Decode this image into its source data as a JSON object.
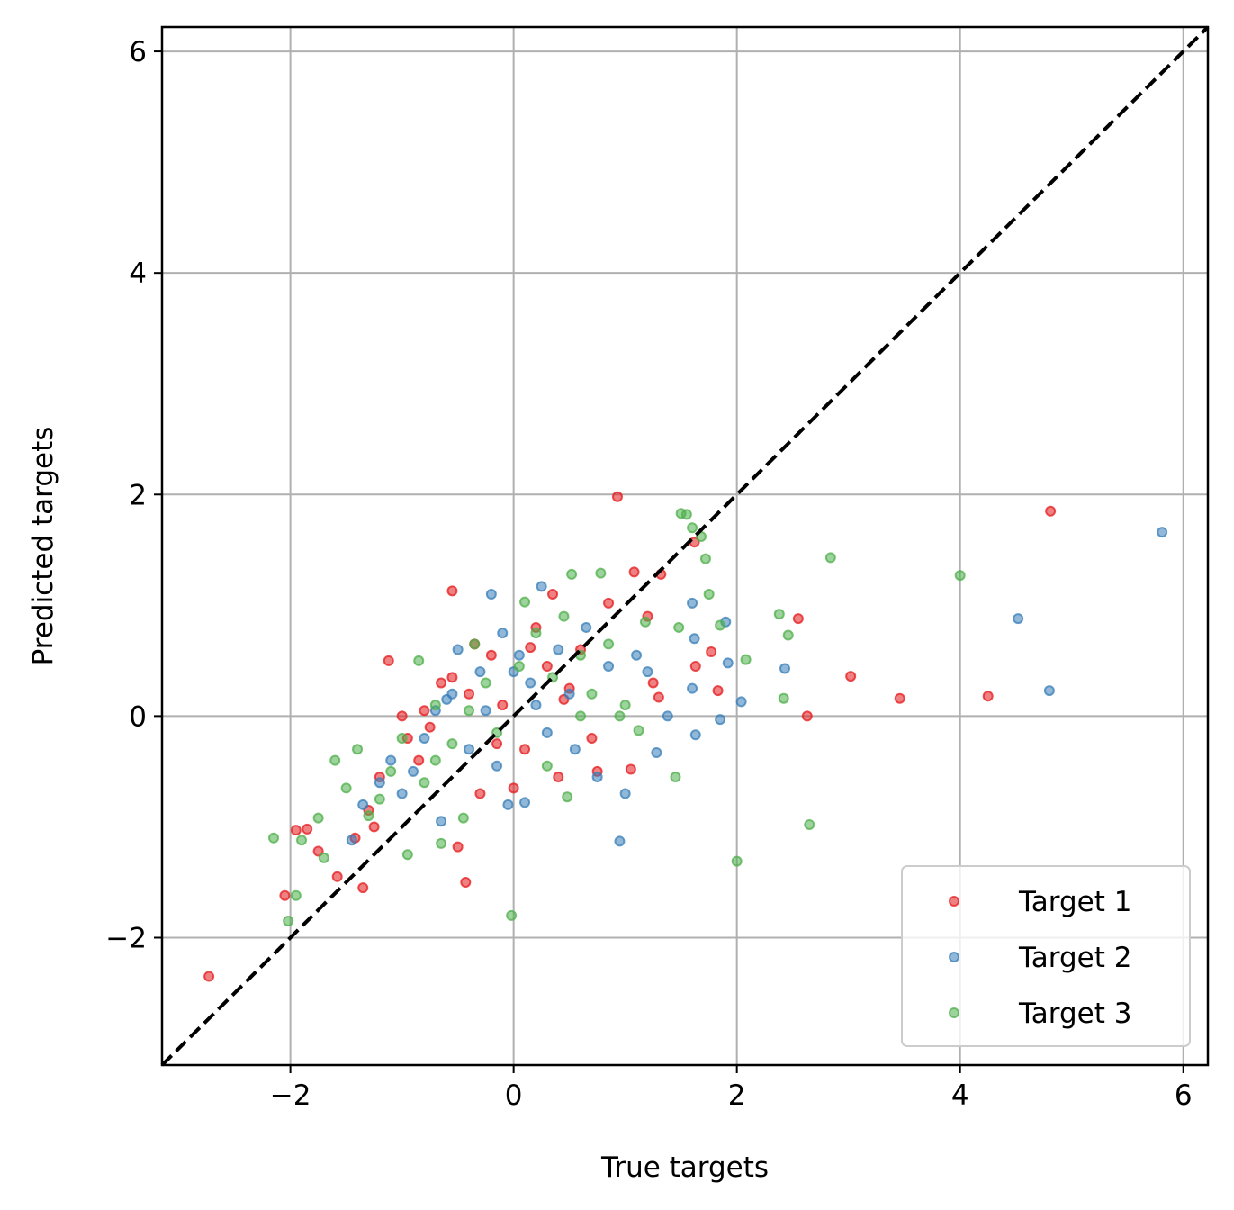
{
  "chart_data": {
    "type": "scatter",
    "title": "",
    "xlabel": "True targets",
    "ylabel": "Predicted targets",
    "xlim": [
      -3.15,
      6.22
    ],
    "ylim": [
      -3.15,
      6.22
    ],
    "xticks": [
      -2,
      0,
      2,
      4,
      6
    ],
    "yticks": [
      -2,
      0,
      2,
      4,
      6
    ],
    "xtick_labels": [
      "−2",
      "0",
      "2",
      "4",
      "6"
    ],
    "ytick_labels": [
      "−2",
      "0",
      "2",
      "4",
      "6"
    ],
    "grid": true,
    "legend_position": "lower-right",
    "reference_line": {
      "style": "dashed",
      "color": "#000000",
      "from": [
        -3.15,
        -3.15
      ],
      "to": [
        6.22,
        6.22
      ]
    },
    "series": [
      {
        "name": "Target 1",
        "color": "#e41a1c",
        "points": [
          [
            -2.73,
            -2.35
          ],
          [
            -2.05,
            -1.62
          ],
          [
            -1.95,
            -1.03
          ],
          [
            -1.85,
            -1.02
          ],
          [
            -1.75,
            -1.22
          ],
          [
            -1.58,
            -1.45
          ],
          [
            -1.35,
            -1.55
          ],
          [
            -1.42,
            -1.1
          ],
          [
            -1.3,
            -0.85
          ],
          [
            -1.25,
            -1.0
          ],
          [
            -1.2,
            -0.55
          ],
          [
            -1.12,
            0.5
          ],
          [
            -1.0,
            0.0
          ],
          [
            -0.95,
            -0.2
          ],
          [
            -0.85,
            -0.4
          ],
          [
            -0.75,
            -0.1
          ],
          [
            -0.65,
            0.3
          ],
          [
            -0.55,
            1.13
          ],
          [
            -0.5,
            -1.18
          ],
          [
            -0.43,
            -1.5
          ],
          [
            -0.4,
            0.2
          ],
          [
            -0.3,
            -0.7
          ],
          [
            -0.2,
            0.55
          ],
          [
            -0.1,
            0.1
          ],
          [
            0.0,
            -0.65
          ],
          [
            0.1,
            -0.3
          ],
          [
            0.2,
            0.8
          ],
          [
            0.3,
            0.45
          ],
          [
            0.35,
            1.1
          ],
          [
            0.4,
            -0.55
          ],
          [
            0.5,
            0.25
          ],
          [
            0.6,
            0.6
          ],
          [
            0.7,
            -0.2
          ],
          [
            0.75,
            -0.5
          ],
          [
            0.85,
            1.02
          ],
          [
            0.93,
            1.98
          ],
          [
            1.05,
            -0.48
          ],
          [
            1.08,
            1.3
          ],
          [
            1.2,
            0.9
          ],
          [
            1.25,
            0.3
          ],
          [
            1.3,
            0.17
          ],
          [
            1.32,
            1.28
          ],
          [
            1.62,
            1.57
          ],
          [
            1.63,
            0.45
          ],
          [
            1.77,
            0.58
          ],
          [
            1.83,
            0.23
          ],
          [
            2.55,
            0.88
          ],
          [
            2.63,
            0.0
          ],
          [
            3.02,
            0.36
          ],
          [
            3.46,
            0.16
          ],
          [
            4.25,
            0.18
          ],
          [
            4.81,
            1.85
          ],
          [
            -0.55,
            0.35
          ],
          [
            -0.15,
            -0.25
          ],
          [
            0.15,
            0.62
          ],
          [
            -0.8,
            0.05
          ],
          [
            -0.35,
            0.65
          ],
          [
            0.45,
            0.15
          ]
        ]
      },
      {
        "name": "Target 2",
        "color": "#377eb8",
        "points": [
          [
            -1.45,
            -1.12
          ],
          [
            -1.35,
            -0.8
          ],
          [
            -1.2,
            -0.6
          ],
          [
            -1.1,
            -0.4
          ],
          [
            -1.0,
            -0.7
          ],
          [
            -0.9,
            -0.5
          ],
          [
            -0.8,
            -0.2
          ],
          [
            -0.7,
            0.05
          ],
          [
            -0.65,
            -0.95
          ],
          [
            -0.55,
            0.2
          ],
          [
            -0.5,
            0.6
          ],
          [
            -0.4,
            -0.3
          ],
          [
            -0.3,
            0.4
          ],
          [
            -0.2,
            1.1
          ],
          [
            -0.15,
            -0.45
          ],
          [
            -0.1,
            0.75
          ],
          [
            -0.05,
            -0.8
          ],
          [
            0.05,
            0.55
          ],
          [
            0.1,
            -0.78
          ],
          [
            0.15,
            0.3
          ],
          [
            0.25,
            1.17
          ],
          [
            0.3,
            -0.15
          ],
          [
            0.4,
            0.6
          ],
          [
            0.5,
            0.2
          ],
          [
            0.55,
            -0.3
          ],
          [
            0.65,
            0.8
          ],
          [
            0.75,
            -0.55
          ],
          [
            0.85,
            0.45
          ],
          [
            0.95,
            -1.13
          ],
          [
            1.0,
            -0.7
          ],
          [
            1.1,
            0.55
          ],
          [
            1.2,
            0.4
          ],
          [
            1.28,
            -0.33
          ],
          [
            1.38,
            0.0
          ],
          [
            1.6,
            1.02
          ],
          [
            1.6,
            0.25
          ],
          [
            1.62,
            0.7
          ],
          [
            1.63,
            -0.17
          ],
          [
            1.85,
            -0.03
          ],
          [
            1.9,
            0.85
          ],
          [
            1.92,
            0.48
          ],
          [
            2.04,
            0.13
          ],
          [
            2.43,
            0.43
          ],
          [
            4.52,
            0.88
          ],
          [
            4.8,
            0.23
          ],
          [
            5.81,
            1.66
          ],
          [
            -0.6,
            0.15
          ],
          [
            0.0,
            0.4
          ],
          [
            -0.25,
            0.05
          ],
          [
            0.2,
            0.1
          ]
        ]
      },
      {
        "name": "Target 3",
        "color": "#4daf4a",
        "points": [
          [
            -2.15,
            -1.1
          ],
          [
            -2.02,
            -1.85
          ],
          [
            -1.95,
            -1.62
          ],
          [
            -1.9,
            -1.12
          ],
          [
            -1.75,
            -0.92
          ],
          [
            -1.7,
            -1.28
          ],
          [
            -1.6,
            -0.4
          ],
          [
            -1.5,
            -0.65
          ],
          [
            -1.4,
            -0.3
          ],
          [
            -1.3,
            -0.9
          ],
          [
            -1.2,
            -0.75
          ],
          [
            -1.1,
            -0.5
          ],
          [
            -1.0,
            -0.2
          ],
          [
            -0.95,
            -1.25
          ],
          [
            -0.85,
            0.5
          ],
          [
            -0.8,
            -0.6
          ],
          [
            -0.7,
            0.1
          ],
          [
            -0.65,
            -1.15
          ],
          [
            -0.55,
            -0.25
          ],
          [
            -0.45,
            -0.92
          ],
          [
            -0.35,
            0.65
          ],
          [
            -0.25,
            0.3
          ],
          [
            -0.15,
            -0.15
          ],
          [
            -0.02,
            -1.8
          ],
          [
            0.05,
            0.45
          ],
          [
            0.1,
            1.03
          ],
          [
            0.2,
            0.75
          ],
          [
            0.3,
            -0.45
          ],
          [
            0.45,
            0.9
          ],
          [
            0.48,
            -0.73
          ],
          [
            0.52,
            1.28
          ],
          [
            0.6,
            0.55
          ],
          [
            0.7,
            0.2
          ],
          [
            0.78,
            1.29
          ],
          [
            0.85,
            0.65
          ],
          [
            0.95,
            0.0
          ],
          [
            1.0,
            0.1
          ],
          [
            1.12,
            -0.13
          ],
          [
            1.18,
            0.85
          ],
          [
            1.45,
            -0.55
          ],
          [
            1.48,
            0.8
          ],
          [
            1.5,
            1.83
          ],
          [
            1.55,
            1.82
          ],
          [
            1.6,
            1.7
          ],
          [
            1.68,
            1.62
          ],
          [
            1.72,
            1.42
          ],
          [
            1.75,
            1.1
          ],
          [
            1.85,
            0.82
          ],
          [
            2.0,
            -1.31
          ],
          [
            2.08,
            0.51
          ],
          [
            2.38,
            0.92
          ],
          [
            2.42,
            0.16
          ],
          [
            2.46,
            0.73
          ],
          [
            2.65,
            -0.98
          ],
          [
            2.84,
            1.43
          ],
          [
            4.0,
            1.27
          ],
          [
            -0.4,
            0.05
          ],
          [
            0.35,
            0.35
          ],
          [
            -0.7,
            -0.4
          ],
          [
            0.6,
            0.0
          ]
        ]
      }
    ]
  }
}
